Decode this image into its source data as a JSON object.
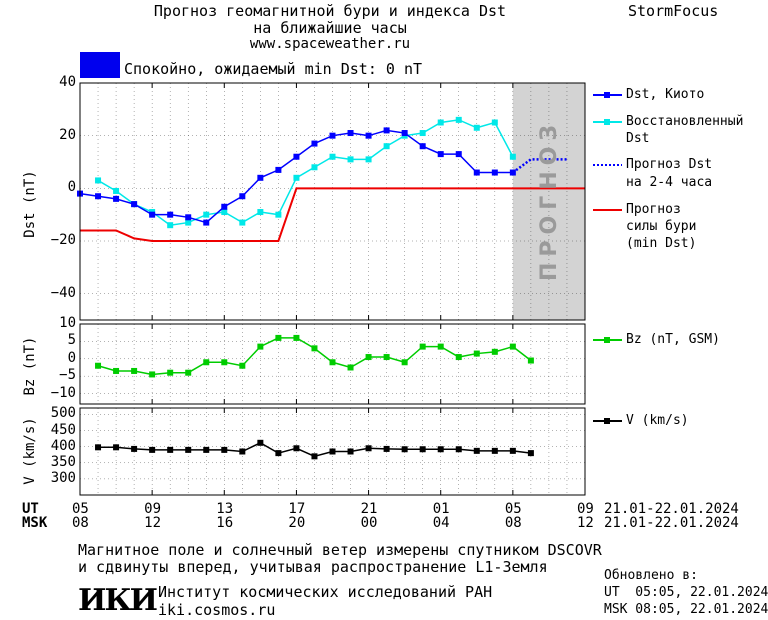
{
  "header": {
    "title_line1": "Прогноз геомагнитной бури и индекса Dst",
    "title_line2": "на ближайшие часы",
    "url": "www.spaceweather.ru",
    "brand": "StormFocus"
  },
  "status": {
    "text": "Спокойно, ожидаемый min Dst: 0 nT",
    "color": "#0000ee"
  },
  "forecast_label": "ПРОГНОЗ",
  "legend": {
    "dst_kyoto": "Dst, Киото",
    "dst_restored_1": "Восстановленный",
    "dst_restored_2": "Dst",
    "forecast_dst_1": "Прогноз Dst",
    "forecast_dst_2": "на 2-4 часа",
    "forecast_storm_1": "Прогноз",
    "forecast_storm_2": "силы бури",
    "forecast_storm_3": "(min Dst)",
    "bz": "Bz (nT, GSM)",
    "v": "V (km/s)"
  },
  "axes": {
    "dst_ylabel": "Dst (nT)",
    "bz_ylabel": "Bz (nT)",
    "v_ylabel": "V (km/s)",
    "ut_label": "UT",
    "msk_label": "MSK",
    "ut_ticks": [
      "05",
      "09",
      "13",
      "17",
      "21",
      "01",
      "05",
      "09"
    ],
    "msk_ticks": [
      "08",
      "12",
      "16",
      "20",
      "00",
      "04",
      "08",
      "12"
    ],
    "ut_range": "21.01-22.01.2024",
    "msk_range": "21.01-22.01.2024",
    "dst_ticks": [
      "40",
      "20",
      "0",
      "−20",
      "−40"
    ],
    "bz_ticks": [
      "10",
      "5",
      "0",
      "−5",
      "−10"
    ],
    "v_ticks": [
      "500",
      "450",
      "400",
      "350",
      "300"
    ]
  },
  "footer": {
    "note_line1": "Магнитное поле и солнечный ветер измерены спутником DSCOVR",
    "note_line2": "и сдвинуты вперед, учитывая распространение L1-Земля",
    "logo_text": "ИКИ",
    "institute": "Институт космических исследований РАН",
    "institute_url": "iki.cosmos.ru",
    "updated_label": "Обновлено в:",
    "updated_ut": "UT  05:05, 22.01.2024",
    "updated_msk": "MSK 08:05, 22.01.2024"
  },
  "chart_data": [
    {
      "type": "line",
      "panel": "dst",
      "x_unit": "hours since 05 UT 21.01.2024",
      "xlim": [
        0,
        28
      ],
      "ylim": [
        -50,
        40
      ],
      "forecast_region": [
        24,
        28
      ],
      "series": [
        {
          "name": "Dst, Киото",
          "color": "#0000ff",
          "x": [
            0,
            1,
            2,
            3,
            4,
            5,
            6,
            7,
            8,
            9,
            10,
            11,
            12,
            13,
            14,
            15,
            16,
            17,
            18,
            19,
            20,
            21,
            22,
            23,
            24
          ],
          "y": [
            -2,
            -3,
            -4,
            -6,
            -10,
            -10,
            -11,
            -13,
            -7,
            -3,
            4,
            7,
            12,
            17,
            20,
            21,
            20,
            22,
            21,
            16,
            13,
            13,
            6,
            6,
            6
          ]
        },
        {
          "name": "Восстановленный Dst",
          "color": "#00e8e8",
          "x": [
            1,
            2,
            3,
            4,
            5,
            6,
            7,
            8,
            9,
            10,
            11,
            12,
            13,
            14,
            15,
            16,
            17,
            18,
            19,
            20,
            21,
            22,
            23,
            24
          ],
          "y": [
            3,
            -1,
            -6,
            -9,
            -14,
            -13,
            -10,
            -9,
            -13,
            -9,
            -10,
            4,
            8,
            12,
            11,
            11,
            16,
            20,
            21,
            25,
            26,
            23,
            25,
            12
          ]
        },
        {
          "name": "Прогноз Dst на 2-4 часа",
          "color": "#0000ff",
          "style": "dotted",
          "x": [
            24,
            25,
            26,
            27
          ],
          "y": [
            6,
            11,
            11,
            11
          ]
        },
        {
          "name": "Прогноз силы бури (min Dst)",
          "color": "#ee0000",
          "x": [
            0,
            2,
            3,
            4,
            5,
            6,
            7,
            8,
            9,
            10,
            11,
            12,
            13,
            14,
            15,
            16,
            17,
            18,
            19,
            20,
            21,
            22,
            23,
            24,
            25,
            26,
            27,
            28
          ],
          "y": [
            -16,
            -16,
            -19,
            -20,
            -20,
            -20,
            -20,
            -20,
            -20,
            -20,
            -20,
            0,
            0,
            0,
            0,
            0,
            0,
            0,
            0,
            0,
            0,
            0,
            0,
            0,
            0,
            0,
            0,
            0
          ]
        }
      ]
    },
    {
      "type": "line",
      "panel": "bz",
      "xlim": [
        0,
        28
      ],
      "ylim": [
        -13,
        10
      ],
      "series": [
        {
          "name": "Bz (nT, GSM)",
          "color": "#00cc00",
          "x": [
            1,
            2,
            3,
            4,
            5,
            6,
            7,
            8,
            9,
            10,
            11,
            12,
            13,
            14,
            15,
            16,
            17,
            18,
            19,
            20,
            21,
            22,
            23,
            24,
            25
          ],
          "y": [
            -2,
            -3.5,
            -3.5,
            -4.5,
            -4,
            -4,
            -1,
            -1,
            -2,
            3.5,
            6,
            6,
            3,
            -1,
            -2.5,
            0.5,
            0.5,
            -1,
            3.5,
            3.5,
            0.5,
            1.5,
            2,
            3.5,
            -0.5
          ]
        }
      ]
    },
    {
      "type": "line",
      "panel": "v",
      "xlim": [
        0,
        28
      ],
      "ylim": [
        250,
        520
      ],
      "series": [
        {
          "name": "V (km/s)",
          "color": "#000000",
          "x": [
            1,
            2,
            3,
            4,
            5,
            6,
            7,
            8,
            9,
            10,
            11,
            12,
            13,
            14,
            15,
            16,
            17,
            18,
            19,
            20,
            21,
            22,
            23,
            24,
            25
          ],
          "y": [
            398,
            398,
            393,
            390,
            390,
            390,
            390,
            390,
            385,
            412,
            380,
            395,
            370,
            385,
            385,
            395,
            393,
            392,
            392,
            392,
            392,
            387,
            387,
            387,
            380
          ]
        }
      ]
    }
  ]
}
